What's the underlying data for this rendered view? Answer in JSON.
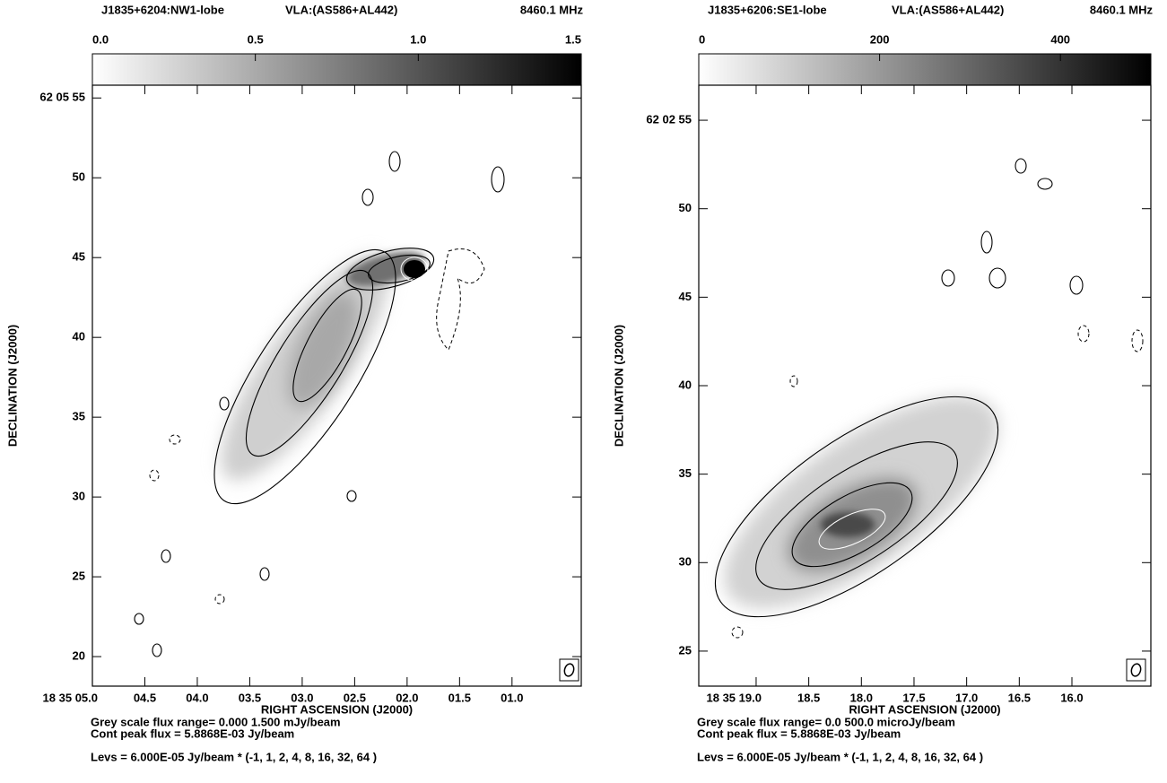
{
  "chart_data": [
    {
      "type": "contour",
      "title": "J1835+6204:NW1-lobe",
      "instrument": "VLA:(AS586+AL442)",
      "frequency": "8460.1 MHz",
      "x_label": "RIGHT ASCENSION (J2000)",
      "y_label": "DECLINATION (J2000)",
      "xlim": [
        5.0,
        0.34
      ],
      "xticks": [
        {
          "value": 5.0,
          "label": "18 35 05.0"
        },
        {
          "value": 4.5,
          "label": "04.5"
        },
        {
          "value": 4.0,
          "label": "04.0"
        },
        {
          "value": 3.5,
          "label": "03.5"
        },
        {
          "value": 3.0,
          "label": "03.0"
        },
        {
          "value": 2.5,
          "label": "02.5"
        },
        {
          "value": 2.0,
          "label": "02.0"
        },
        {
          "value": 1.5,
          "label": "01.5"
        },
        {
          "value": 1.0,
          "label": "01.0"
        }
      ],
      "ylim": [
        18.15,
        55.8
      ],
      "yticks": [
        {
          "value": 55,
          "label": "62 05 55"
        },
        50,
        45,
        40,
        35,
        30,
        25,
        20
      ],
      "colorbar": {
        "lim": [
          0,
          1.5
        ],
        "ticks": [
          {
            "value": 0,
            "label": "0.0"
          },
          0.5,
          {
            "value": 1,
            "label": "1.0"
          },
          1.5
        ],
        "colors": [
          "#ffffff",
          "#000000"
        ]
      },
      "notes": [
        "Grey scale flux range= 0.000 1.500 mJy/beam",
        "Cont peak flux =  5.8868E-03 Jy/beam",
        "Levs = 6.000E-05 Jy/beam * (-1, 1, 2, 4, 8, 16, 32, 64 )"
      ]
    },
    {
      "type": "contour",
      "title": "J1835+6206:SE1-lobe",
      "instrument": "VLA:(AS586+AL442)",
      "frequency": "8460.1 MHz",
      "x_label": "RIGHT ASCENSION (J2000)",
      "y_label": "DECLINATION (J2000)",
      "xlim": [
        19.545,
        15.25
      ],
      "xticks": [
        {
          "value": 19.0,
          "label": "18 35 19.0"
        },
        18.5,
        {
          "value": 18.0,
          "label": "18.0"
        },
        17.5,
        {
          "value": 17.0,
          "label": "17.0"
        },
        16.5,
        {
          "value": 16.0,
          "label": "16.0"
        }
      ],
      "ylim": [
        23.02,
        56.98
      ],
      "yticks": [
        {
          "value": 55,
          "label": "62 02 55"
        },
        50,
        45,
        40,
        35,
        30,
        25
      ],
      "colorbar": {
        "lim": [
          0,
          500
        ],
        "ticks": [
          0,
          200,
          400
        ],
        "colors": [
          "#ffffff",
          "#000000"
        ]
      },
      "notes": [
        "Grey scale flux range= 0.0 500.0 microJy/beam",
        "Cont peak flux =  5.8868E-03 Jy/beam",
        "Levs = 6.000E-05 Jy/beam * (-1, 1, 2, 4, 8, 16, 32, 64 )"
      ]
    }
  ]
}
